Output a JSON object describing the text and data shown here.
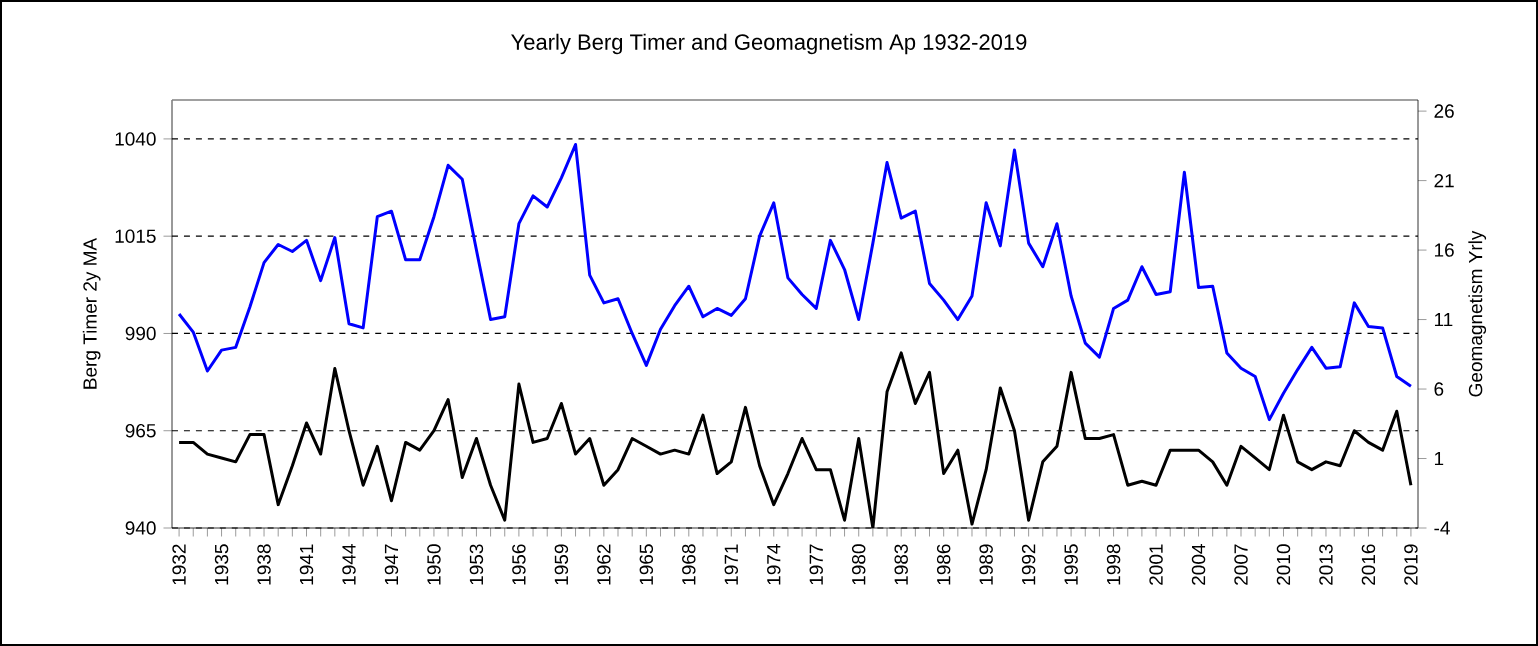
{
  "chart_data": {
    "type": "line",
    "title": "Yearly Berg Timer and Geomagnetism Ap 1932-2019",
    "ylabel": "Berg Timer 2y MA",
    "y2label": "Geomagnetism Yrly",
    "x": [
      1932,
      1933,
      1934,
      1935,
      1936,
      1937,
      1938,
      1939,
      1940,
      1941,
      1942,
      1943,
      1944,
      1945,
      1946,
      1947,
      1948,
      1949,
      1950,
      1951,
      1952,
      1953,
      1954,
      1955,
      1956,
      1957,
      1958,
      1959,
      1960,
      1961,
      1962,
      1963,
      1964,
      1965,
      1966,
      1967,
      1968,
      1969,
      1970,
      1971,
      1972,
      1973,
      1974,
      1975,
      1976,
      1977,
      1978,
      1979,
      1980,
      1981,
      1982,
      1983,
      1984,
      1985,
      1986,
      1987,
      1988,
      1989,
      1990,
      1991,
      1992,
      1993,
      1994,
      1995,
      1996,
      1997,
      1998,
      1999,
      2000,
      2001,
      2002,
      2003,
      2004,
      2005,
      2006,
      2007,
      2008,
      2009,
      2010,
      2011,
      2012,
      2013,
      2014,
      2015,
      2016,
      2017,
      2018,
      2019
    ],
    "series": [
      {
        "color": "#000000",
        "values": [
          962,
          962,
          959,
          958,
          957,
          964,
          964,
          946,
          956,
          967,
          959,
          981,
          965,
          951,
          961,
          947,
          962,
          960,
          965,
          973,
          953,
          963,
          951,
          942,
          977,
          962,
          963,
          972,
          959,
          963,
          951,
          955,
          963,
          961,
          959,
          960,
          959,
          969,
          954,
          957,
          971,
          956,
          946,
          954,
          963,
          955,
          955,
          942,
          963,
          940,
          975,
          985,
          972,
          980,
          954,
          960,
          941,
          955,
          976,
          965,
          942,
          957,
          961,
          980,
          963,
          963,
          964,
          951,
          952,
          951,
          960,
          960,
          960,
          957,
          951,
          961,
          958,
          955,
          969,
          957,
          955,
          957,
          956,
          965,
          962,
          960,
          970,
          951
        ]
      },
      {
        "color": "#0000ff",
        "axis": "y2",
        "values": [
          11.4,
          10.1,
          7.3,
          8.8,
          9.0,
          11.9,
          15.1,
          16.4,
          15.9,
          16.7,
          13.8,
          16.9,
          10.7,
          10.4,
          18.4,
          18.8,
          15.3,
          15.3,
          18.4,
          22.1,
          21.1,
          16.0,
          11.0,
          11.2,
          17.9,
          19.9,
          19.1,
          21.2,
          23.6,
          14.2,
          12.2,
          12.5,
          10.0,
          7.7,
          10.3,
          12.0,
          13.4,
          11.2,
          11.8,
          11.3,
          12.5,
          17.0,
          19.4,
          14.0,
          12.8,
          11.8,
          16.7,
          14.6,
          11.0,
          16.5,
          22.3,
          18.3,
          18.8,
          13.6,
          12.4,
          11.0,
          12.7,
          19.4,
          16.3,
          23.2,
          16.5,
          14.8,
          17.9,
          12.7,
          9.3,
          8.3,
          11.8,
          12.4,
          14.8,
          12.8,
          13.0,
          21.6,
          13.3,
          13.4,
          8.6,
          7.5,
          6.9,
          3.8,
          5.7,
          7.4,
          9.0,
          7.5,
          7.6,
          12.2,
          10.5,
          10.4,
          6.9,
          6.2
        ]
      }
    ],
    "xlim": [
      1931.5,
      2019.5
    ],
    "xticks": [
      1932,
      {
        "value": 1933,
        "label": null
      },
      {
        "value": 1934,
        "label": null
      },
      1935,
      {
        "value": 1936,
        "label": null
      },
      {
        "value": 1937,
        "label": null
      },
      1938,
      {
        "value": 1939,
        "label": null
      },
      {
        "value": 1940,
        "label": null
      },
      1941,
      {
        "value": 1942,
        "label": null
      },
      {
        "value": 1943,
        "label": null
      },
      1944,
      {
        "value": 1945,
        "label": null
      },
      {
        "value": 1946,
        "label": null
      },
      1947,
      {
        "value": 1948,
        "label": null
      },
      {
        "value": 1949,
        "label": null
      },
      1950,
      {
        "value": 1951,
        "label": null
      },
      {
        "value": 1952,
        "label": null
      },
      1953,
      {
        "value": 1954,
        "label": null
      },
      {
        "value": 1955,
        "label": null
      },
      1956,
      {
        "value": 1957,
        "label": null
      },
      {
        "value": 1958,
        "label": null
      },
      1959,
      {
        "value": 1960,
        "label": null
      },
      {
        "value": 1961,
        "label": null
      },
      1962,
      {
        "value": 1963,
        "label": null
      },
      {
        "value": 1964,
        "label": null
      },
      1965,
      {
        "value": 1966,
        "label": null
      },
      {
        "value": 1967,
        "label": null
      },
      1968,
      {
        "value": 1969,
        "label": null
      },
      {
        "value": 1970,
        "label": null
      },
      1971,
      {
        "value": 1972,
        "label": null
      },
      {
        "value": 1973,
        "label": null
      },
      1974,
      {
        "value": 1975,
        "label": null
      },
      {
        "value": 1976,
        "label": null
      },
      1977,
      {
        "value": 1978,
        "label": null
      },
      {
        "value": 1979,
        "label": null
      },
      1980,
      {
        "value": 1981,
        "label": null
      },
      {
        "value": 1982,
        "label": null
      },
      1983,
      {
        "value": 1984,
        "label": null
      },
      {
        "value": 1985,
        "label": null
      },
      1986,
      {
        "value": 1987,
        "label": null
      },
      {
        "value": 1988,
        "label": null
      },
      1989,
      {
        "value": 1990,
        "label": null
      },
      {
        "value": 1991,
        "label": null
      },
      1992,
      {
        "value": 1993,
        "label": null
      },
      {
        "value": 1994,
        "label": null
      },
      1995,
      {
        "value": 1996,
        "label": null
      },
      {
        "value": 1997,
        "label": null
      },
      1998,
      {
        "value": 1999,
        "label": null
      },
      {
        "value": 2000,
        "label": null
      },
      2001,
      {
        "value": 2002,
        "label": null
      },
      {
        "value": 2003,
        "label": null
      },
      2004,
      {
        "value": 2005,
        "label": null
      },
      {
        "value": 2006,
        "label": null
      },
      2007,
      {
        "value": 2008,
        "label": null
      },
      {
        "value": 2009,
        "label": null
      },
      2010,
      {
        "value": 2011,
        "label": null
      },
      {
        "value": 2012,
        "label": null
      },
      2013,
      {
        "value": 2014,
        "label": null
      },
      {
        "value": 2015,
        "label": null
      },
      2016,
      {
        "value": 2017,
        "label": null
      },
      {
        "value": 2018,
        "label": null
      },
      2019
    ],
    "ylim": [
      940,
      1050
    ],
    "yticks": [
      940,
      965,
      990,
      1015,
      1040
    ],
    "y2lim": [
      -4,
      26.8
    ],
    "y2ticks": [
      -4,
      1,
      6,
      11,
      16,
      21,
      26
    ],
    "grid": "y"
  }
}
